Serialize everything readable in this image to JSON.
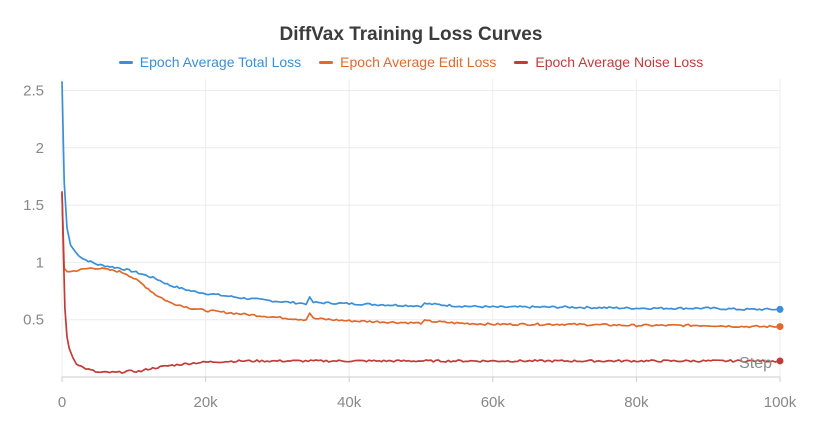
{
  "chart_data": {
    "type": "line",
    "title": "DiffVax Training Loss Curves",
    "xlabel": "Step",
    "ylabel": "",
    "xlim": [
      0,
      100000
    ],
    "ylim": [
      0,
      2.6
    ],
    "x_ticks": [
      0,
      20000,
      40000,
      60000,
      80000,
      100000
    ],
    "x_tick_labels": [
      "0",
      "20k",
      "40k",
      "60k",
      "80k",
      "100k"
    ],
    "y_ticks": [
      0.5,
      1,
      1.5,
      2,
      2.5
    ],
    "y_tick_labels": [
      "0.5",
      "1",
      "1.5",
      "2",
      "2.5"
    ],
    "grid": true,
    "legend_position": "top-center",
    "series": [
      {
        "name": "Epoch Average Total Loss",
        "color": "#3a8fd8",
        "x": [
          0,
          300,
          700,
          1200,
          2000,
          3000,
          5000,
          8000,
          10000,
          13000,
          15000,
          18000,
          20000,
          25000,
          30000,
          34000,
          34500,
          35000,
          40000,
          45000,
          50000,
          50500,
          55000,
          60000,
          70000,
          80000,
          90000,
          95000,
          100000
        ],
        "y": [
          2.58,
          1.7,
          1.3,
          1.15,
          1.08,
          1.03,
          0.98,
          0.95,
          0.92,
          0.86,
          0.8,
          0.75,
          0.73,
          0.69,
          0.66,
          0.64,
          0.69,
          0.65,
          0.64,
          0.63,
          0.62,
          0.64,
          0.62,
          0.61,
          0.61,
          0.6,
          0.6,
          0.59,
          0.59
        ]
      },
      {
        "name": "Epoch Average Edit Loss",
        "color": "#e06a2c",
        "x": [
          0,
          300,
          700,
          1200,
          2000,
          3000,
          4000,
          5000,
          6000,
          7000,
          8000,
          9000,
          10000,
          11000,
          12000,
          13000,
          15000,
          18000,
          20000,
          25000,
          30000,
          34000,
          34500,
          35000,
          40000,
          45000,
          50000,
          50500,
          55000,
          60000,
          70000,
          80000,
          90000,
          95000,
          100000
        ],
        "y": [
          1.6,
          0.95,
          0.92,
          0.92,
          0.93,
          0.94,
          0.95,
          0.95,
          0.94,
          0.93,
          0.92,
          0.9,
          0.86,
          0.82,
          0.77,
          0.72,
          0.65,
          0.6,
          0.58,
          0.55,
          0.52,
          0.5,
          0.56,
          0.51,
          0.49,
          0.48,
          0.47,
          0.49,
          0.47,
          0.46,
          0.46,
          0.45,
          0.45,
          0.44,
          0.44
        ]
      },
      {
        "name": "Epoch Average Noise Loss",
        "color": "#c23b3b",
        "x": [
          0,
          200,
          400,
          700,
          1000,
          1500,
          2000,
          3000,
          4000,
          5000,
          6000,
          7000,
          8000,
          9000,
          10000,
          11000,
          12000,
          13000,
          15000,
          18000,
          20000,
          25000,
          30000,
          35000,
          40000,
          50000,
          60000,
          70000,
          80000,
          90000,
          100000
        ],
        "y": [
          1.62,
          1.1,
          0.6,
          0.35,
          0.25,
          0.17,
          0.12,
          0.08,
          0.06,
          0.04,
          0.04,
          0.04,
          0.04,
          0.05,
          0.05,
          0.05,
          0.07,
          0.08,
          0.1,
          0.12,
          0.13,
          0.14,
          0.14,
          0.14,
          0.14,
          0.14,
          0.14,
          0.14,
          0.14,
          0.14,
          0.14
        ]
      }
    ]
  }
}
